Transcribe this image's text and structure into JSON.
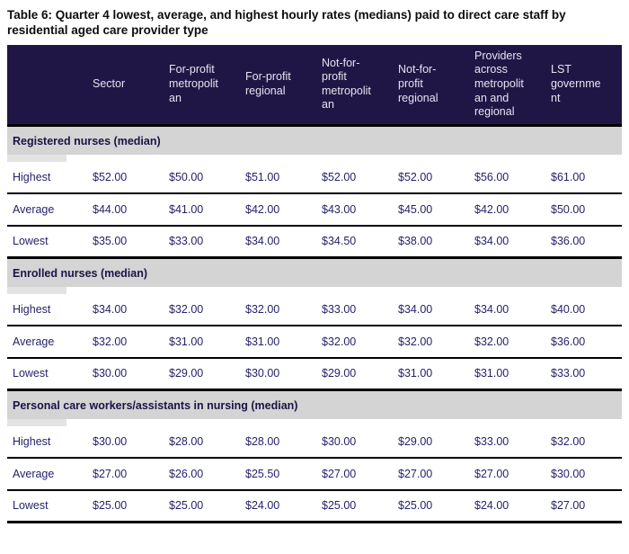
{
  "title": "Table 6: Quarter 4 lowest, average, and highest hourly rates (medians) paid to direct care staff by residential aged care provider type",
  "table": {
    "columns": [
      "",
      "Sector",
      "For-profit metropolitan",
      "For-profit regional",
      "Not-for-profit metropolitan",
      "Not-for-profit regional",
      "Providers across metropolitan and regional",
      "LST government"
    ],
    "sections": [
      {
        "heading": "Registered nurses (median)",
        "rows": [
          {
            "label": "Highest",
            "values": [
              "$52.00",
              "$50.00",
              "$51.00",
              "$52.00",
              "$52.00",
              "$56.00",
              "$61.00"
            ]
          },
          {
            "label": "Average",
            "values": [
              "$44.00",
              "$41.00",
              "$42.00",
              "$43.00",
              "$45.00",
              "$42.00",
              "$50.00"
            ]
          },
          {
            "label": "Lowest",
            "values": [
              "$35.00",
              "$33.00",
              "$34.00",
              "$34.50",
              "$38.00",
              "$34.00",
              "$36.00"
            ]
          }
        ]
      },
      {
        "heading": "Enrolled nurses (median)",
        "rows": [
          {
            "label": "Highest",
            "values": [
              "$34.00",
              "$32.00",
              "$32.00",
              "$33.00",
              "$34.00",
              "$34.00",
              "$40.00"
            ]
          },
          {
            "label": "Average",
            "values": [
              "$32.00",
              "$31.00",
              "$31.00",
              "$32.00",
              "$32.00",
              "$32.00",
              "$36.00"
            ]
          },
          {
            "label": "Lowest",
            "values": [
              "$30.00",
              "$29.00",
              "$30.00",
              "$29.00",
              "$31.00",
              "$31.00",
              "$33.00"
            ]
          }
        ]
      },
      {
        "heading": "Personal care workers/assistants in nursing (median)",
        "rows": [
          {
            "label": "Highest",
            "values": [
              "$30.00",
              "$28.00",
              "$28.00",
              "$30.00",
              "$29.00",
              "$33.00",
              "$32.00"
            ]
          },
          {
            "label": "Average",
            "values": [
              "$27.00",
              "$26.00",
              "$25.50",
              "$27.00",
              "$27.00",
              "$27.00",
              "$30.00"
            ]
          },
          {
            "label": "Lowest",
            "values": [
              "$25.00",
              "$25.00",
              "$24.00",
              "$25.00",
              "$25.00",
              "$24.00",
              "$27.00"
            ]
          }
        ]
      }
    ]
  },
  "colors": {
    "header_bg": "#201646",
    "header_text": "#e6e3f0",
    "section_band_bg": "#d4d4d4",
    "body_text": "#26226b",
    "border": "#000000"
  }
}
